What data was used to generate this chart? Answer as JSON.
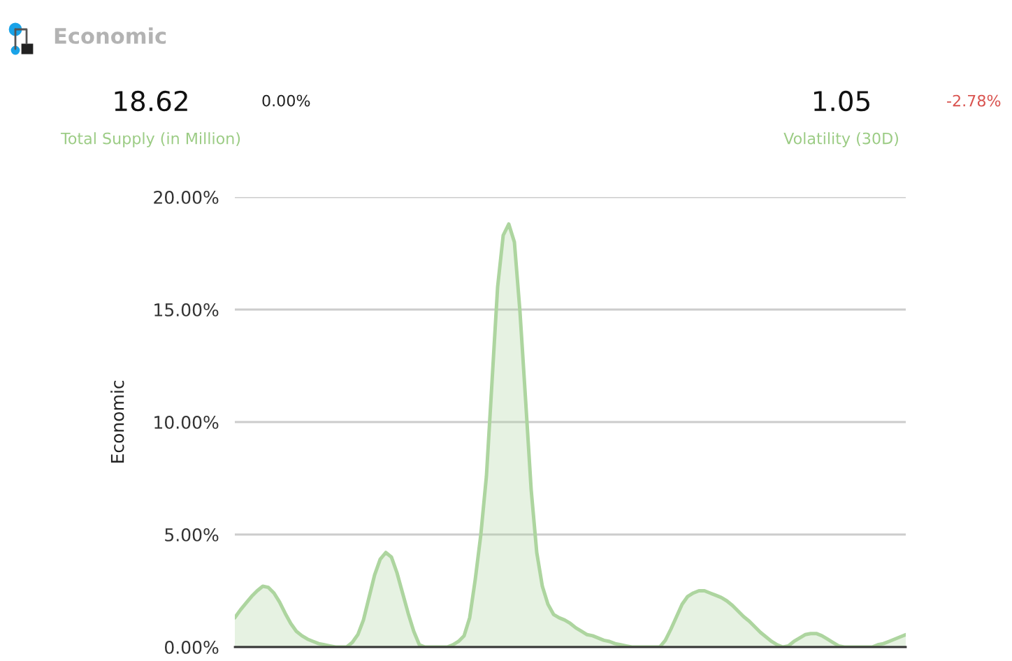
{
  "chart_data": {
    "type": "area",
    "title": "Economic",
    "ylabel": "Economic",
    "annotations": [
      "18.62",
      "0.00%",
      "Total Supply (in Million)",
      "1.05",
      "-2.78%",
      "Volatility (30D)"
    ],
    "categories": [
      null,
      null,
      null,
      null,
      null,
      null,
      null,
      null,
      null,
      null,
      null,
      null,
      null,
      null,
      null,
      null,
      null,
      null,
      null,
      null,
      null,
      null,
      null,
      null,
      null,
      null,
      null,
      null,
      null,
      null,
      null,
      null,
      null,
      null,
      null,
      null,
      null,
      null,
      null,
      null,
      null,
      null,
      null,
      null,
      null,
      null,
      null,
      null,
      null,
      null,
      null,
      null,
      null,
      null,
      null,
      null,
      null,
      null,
      null,
      null,
      null,
      null,
      null,
      null,
      null,
      null,
      null,
      null,
      null,
      null,
      null,
      null,
      null,
      null,
      null,
      null,
      null,
      null,
      null,
      null,
      null,
      null,
      null,
      null,
      null,
      null,
      null,
      null,
      null,
      null,
      null,
      null,
      null,
      null,
      null,
      null,
      null,
      null,
      null,
      null,
      null,
      null,
      null,
      null,
      null,
      null,
      null,
      null,
      null,
      null,
      null,
      null,
      null,
      null,
      null,
      null,
      null,
      null,
      null,
      null,
      null
    ],
    "series": [
      {
        "color": "#add59f",
        "values": [
          1.3,
          1.65,
          1.95,
          2.25,
          2.5,
          2.7,
          2.65,
          2.4,
          2.0,
          1.5,
          1.05,
          0.7,
          0.5,
          0.35,
          0.25,
          0.15,
          0.1,
          0.05,
          0.0,
          0.0,
          0.0,
          0.2,
          0.55,
          1.2,
          2.2,
          3.2,
          3.9,
          4.2,
          4.0,
          3.3,
          2.4,
          1.5,
          0.7,
          0.1,
          0.0,
          0.0,
          0.0,
          0.0,
          0.0,
          0.1,
          0.25,
          0.5,
          1.3,
          3.0,
          5.0,
          7.6,
          11.8,
          16.0,
          18.3,
          18.8,
          18.0,
          14.9,
          11.0,
          7.0,
          4.2,
          2.7,
          1.9,
          1.45,
          1.3,
          1.2,
          1.05,
          0.85,
          0.7,
          0.55,
          0.5,
          0.4,
          0.3,
          0.25,
          0.15,
          0.1,
          0.05,
          0.0,
          0.0,
          0.0,
          0.0,
          0.0,
          0.0,
          0.3,
          0.8,
          1.35,
          1.9,
          2.25,
          2.4,
          2.5,
          2.5,
          2.4,
          2.3,
          2.2,
          2.05,
          1.85,
          1.6,
          1.35,
          1.15,
          0.9,
          0.65,
          0.45,
          0.25,
          0.1,
          0.0,
          0.05,
          0.25,
          0.4,
          0.55,
          0.6,
          0.6,
          0.5,
          0.35,
          0.2,
          0.05,
          0.0,
          0.0,
          0.0,
          0.0,
          0.0,
          0.0,
          0.1,
          0.15,
          0.25,
          0.35,
          0.45,
          0.55
        ]
      }
    ],
    "ylim": [
      0,
      20
    ],
    "yticks": [
      {
        "value": 0,
        "label": "0.00%"
      },
      {
        "value": 5,
        "label": "5.00%"
      },
      {
        "value": 10,
        "label": "10.00%"
      },
      {
        "value": 15,
        "label": "15.00%"
      },
      {
        "value": 20,
        "label": "20.00%"
      }
    ],
    "grid": "y",
    "tick_labels": "y"
  }
}
